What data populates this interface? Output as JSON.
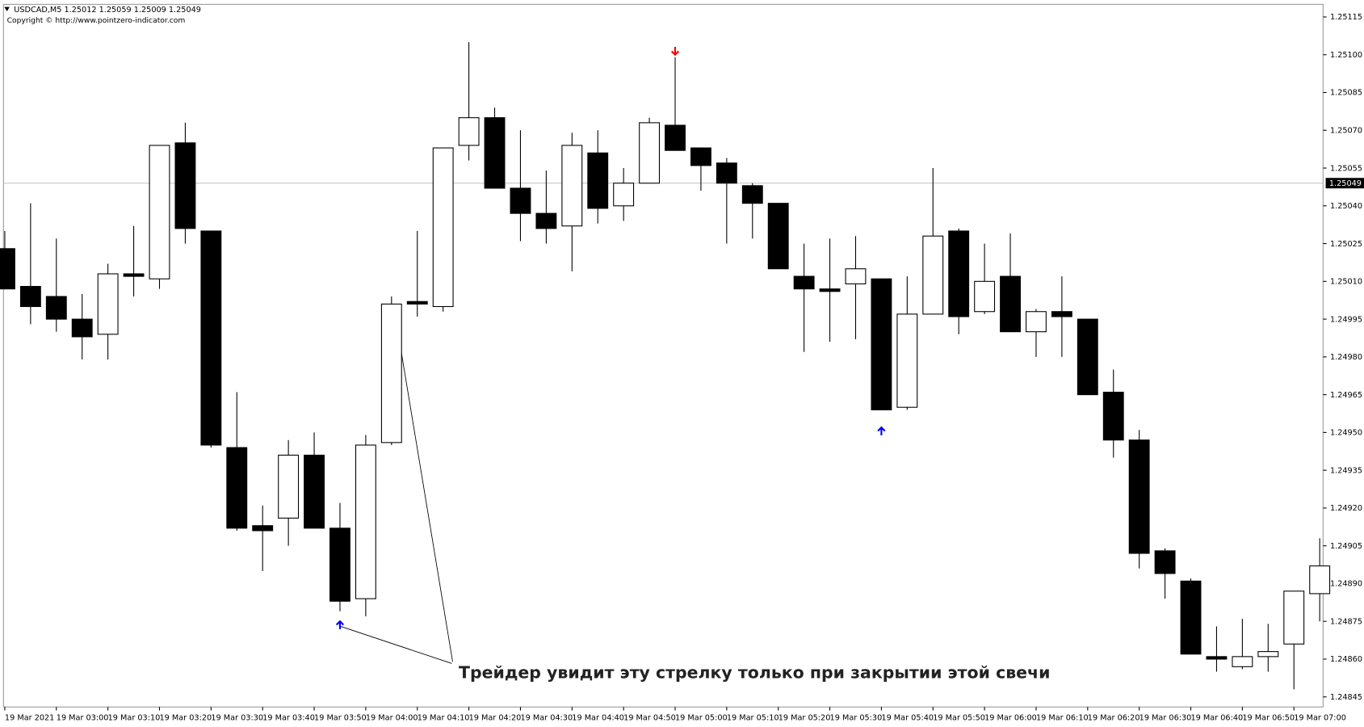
{
  "chart_data": {
    "type": "candlestick",
    "title": "USDCAD,M5  1.25012 1.25059 1.25009 1.25049",
    "subtitle": "Copyright © http://www.pointzero-indicator.com",
    "annotation": "Трейдер увидит эту стрелку только при закрытии этой свечи",
    "categories": [
      "19 Mar 2021",
      null,
      "19 Mar 03:00",
      null,
      "19 Mar 03:10",
      null,
      "19 Mar 03:20",
      null,
      "19 Mar 03:30",
      null,
      "19 Mar 03:40",
      null,
      "19 Mar 03:50",
      null,
      "19 Mar 04:00",
      null,
      "19 Mar 04:10",
      null,
      "19 Mar 04:20",
      null,
      "19 Mar 04:30",
      null,
      "19 Mar 04:40",
      null,
      "19 Mar 04:50",
      null,
      "19 Mar 05:00",
      null,
      "19 Mar 05:10",
      null,
      "19 Mar 05:20",
      null,
      "19 Mar 05:30",
      null,
      "19 Mar 05:40",
      null,
      "19 Mar 05:50",
      null,
      "19 Mar 06:00",
      null,
      "19 Mar 06:10",
      null,
      "19 Mar 06:20",
      null,
      "19 Mar 06:30",
      null,
      "19 Mar 06:40",
      null,
      "19 Mar 06:50",
      null,
      "19 Mar 07:00",
      null
    ],
    "ohlc": [
      [
        1.25023,
        1.2503,
        1.25007,
        1.25007
      ],
      [
        1.25008,
        1.25041,
        1.24993,
        1.25
      ],
      [
        1.25004,
        1.25027,
        1.2499,
        1.24995
      ],
      [
        1.24995,
        1.25005,
        1.24979,
        1.24988
      ],
      [
        1.24989,
        1.25017,
        1.24979,
        1.25013
      ],
      [
        1.25013,
        1.25032,
        1.25004,
        1.25012
      ],
      [
        1.25011,
        1.25064,
        1.25007,
        1.25064
      ],
      [
        1.25065,
        1.25073,
        1.25025,
        1.25031
      ],
      [
        1.2503,
        1.2503,
        1.24944,
        1.24945
      ],
      [
        1.24944,
        1.24966,
        1.24911,
        1.24912
      ],
      [
        1.24913,
        1.24921,
        1.24895,
        1.24911
      ],
      [
        1.24916,
        1.24947,
        1.24905,
        1.24941
      ],
      [
        1.24941,
        1.2495,
        1.24912,
        1.24912
      ],
      [
        1.24912,
        1.24922,
        1.24879,
        1.24883
      ],
      [
        1.24884,
        1.24949,
        1.24877,
        1.24945
      ],
      [
        1.24946,
        1.25004,
        1.24945,
        1.25001
      ],
      [
        1.25002,
        1.2503,
        1.24996,
        1.25001
      ],
      [
        1.25,
        1.25063,
        1.24998,
        1.25063
      ],
      [
        1.25064,
        1.25105,
        1.25058,
        1.25075
      ],
      [
        1.25075,
        1.25079,
        1.25047,
        1.25047
      ],
      [
        1.25047,
        1.2507,
        1.25026,
        1.25037
      ],
      [
        1.25037,
        1.25054,
        1.25025,
        1.25031
      ],
      [
        1.25032,
        1.25069,
        1.25014,
        1.25064
      ],
      [
        1.25061,
        1.2507,
        1.25033,
        1.25039
      ],
      [
        1.2504,
        1.25055,
        1.25034,
        1.25049
      ],
      [
        1.25049,
        1.25075,
        1.25049,
        1.25073
      ],
      [
        1.25072,
        1.25099,
        1.25062,
        1.25062
      ],
      [
        1.25063,
        1.25063,
        1.25046,
        1.25056
      ],
      [
        1.25057,
        1.25059,
        1.25025,
        1.25049
      ],
      [
        1.25048,
        1.25049,
        1.25027,
        1.25041
      ],
      [
        1.25041,
        1.25041,
        1.25015,
        1.25015
      ],
      [
        1.25012,
        1.25025,
        1.24982,
        1.25007
      ],
      [
        1.25007,
        1.25027,
        1.24986,
        1.25006
      ],
      [
        1.25009,
        1.25028,
        1.24987,
        1.25015
      ],
      [
        1.25011,
        1.25011,
        1.24959,
        1.24959
      ],
      [
        1.2496,
        1.25012,
        1.24959,
        1.24997
      ],
      [
        1.24997,
        1.25055,
        1.24997,
        1.25028
      ],
      [
        1.2503,
        1.25031,
        1.24989,
        1.24996
      ],
      [
        1.24998,
        1.25025,
        1.24997,
        1.2501
      ],
      [
        1.25012,
        1.25029,
        1.2499,
        1.2499
      ],
      [
        1.2499,
        1.24999,
        1.2498,
        1.24998
      ],
      [
        1.24998,
        1.25012,
        1.2498,
        1.24996
      ],
      [
        1.24995,
        1.24995,
        1.24965,
        1.24965
      ],
      [
        1.24966,
        1.24975,
        1.2494,
        1.24947
      ],
      [
        1.24947,
        1.24951,
        1.24896,
        1.24902
      ],
      [
        1.24903,
        1.24904,
        1.24884,
        1.24894
      ],
      [
        1.24891,
        1.24892,
        1.24862,
        1.24862
      ],
      [
        1.24861,
        1.24873,
        1.24855,
        1.2486
      ],
      [
        1.24857,
        1.24876,
        1.24856,
        1.24861
      ],
      [
        1.24861,
        1.24874,
        1.24855,
        1.24863
      ],
      [
        1.24866,
        1.24887,
        1.24848,
        1.24887
      ],
      [
        1.24886,
        1.24908,
        1.24875,
        1.24897
      ]
    ],
    "up_arrows": [
      null,
      null,
      null,
      null,
      null,
      null,
      null,
      null,
      null,
      null,
      null,
      null,
      null,
      1.24875,
      null,
      null,
      null,
      null,
      null,
      null,
      null,
      null,
      null,
      null,
      null,
      null,
      null,
      null,
      null,
      null,
      null,
      null,
      null,
      null,
      1.24952,
      null,
      null,
      null,
      null,
      null,
      null,
      null,
      null,
      null,
      null,
      null,
      null,
      null,
      null,
      null,
      null,
      null
    ],
    "down_arrows": [
      null,
      null,
      null,
      null,
      null,
      null,
      null,
      null,
      null,
      null,
      null,
      null,
      null,
      null,
      null,
      null,
      null,
      null,
      null,
      null,
      null,
      null,
      null,
      null,
      null,
      null,
      1.251,
      null,
      null,
      null,
      null,
      null,
      null,
      null,
      null,
      null,
      null,
      null,
      null,
      null,
      null,
      null,
      null,
      null,
      null,
      null,
      null,
      null,
      null,
      null,
      null,
      null
    ],
    "up_arrow_color": "#0000ff",
    "down_arrow_color": "#ff0000",
    "bull_color": "#ffffff",
    "bear_color": "#000000",
    "last_price": 1.25049,
    "ylim": [
      1.24841,
      1.2512
    ],
    "yticks": [
      1.25115,
      {
        "value": 1.251,
        "label": "1.25100"
      },
      1.25085,
      {
        "value": 1.2507,
        "label": "1.25070"
      },
      1.25055,
      {
        "value": 1.2504,
        "label": "1.25040"
      },
      1.25025,
      {
        "value": 1.2501,
        "label": "1.25010"
      },
      1.24995,
      {
        "value": 1.2498,
        "label": "1.24980"
      },
      1.24965,
      {
        "value": 1.2495,
        "label": "1.24950"
      },
      1.24935,
      {
        "value": 1.2492,
        "label": "1.24920"
      },
      1.24905,
      {
        "value": 1.2489,
        "label": "1.24890"
      },
      1.24875,
      {
        "value": 1.2486,
        "label": "1.24860"
      },
      1.24845
    ]
  }
}
